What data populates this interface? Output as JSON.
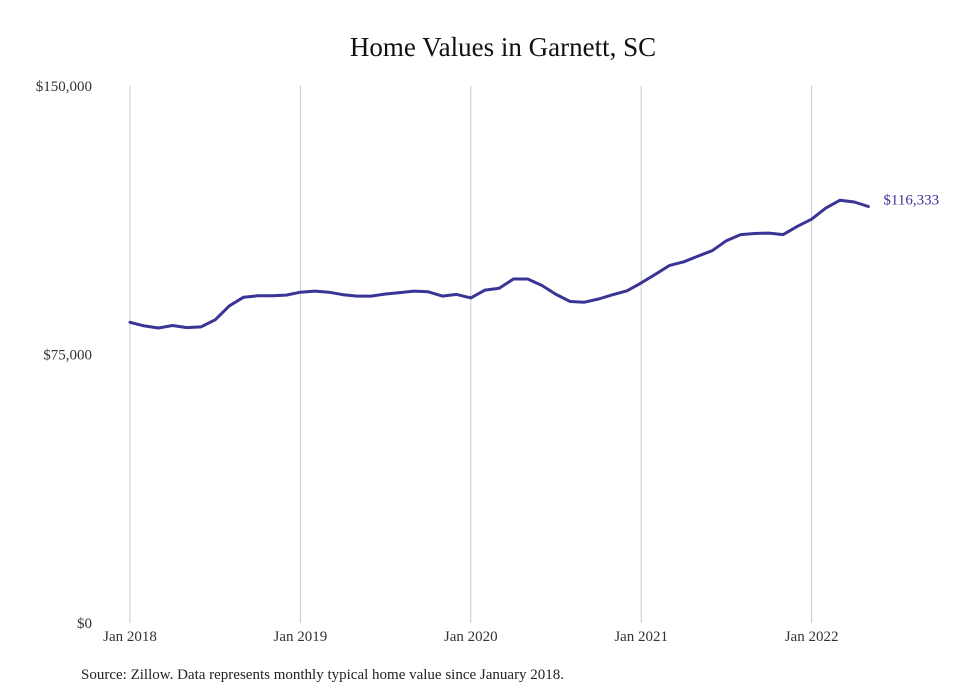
{
  "chart_data": {
    "type": "line",
    "title": "Home Values in Garnett, SC",
    "xlabel": "",
    "ylabel": "",
    "ylim": [
      0,
      150000
    ],
    "y_ticks": [
      {
        "value": 0,
        "label": "$0"
      },
      {
        "value": 75000,
        "label": "$75,000"
      },
      {
        "value": 150000,
        "label": "$150,000"
      }
    ],
    "x_ticks": [
      {
        "value": "2018-01",
        "label": "Jan 2018"
      },
      {
        "value": "2019-01",
        "label": "Jan 2019"
      },
      {
        "value": "2020-01",
        "label": "Jan 2020"
      },
      {
        "value": "2021-01",
        "label": "Jan 2021"
      },
      {
        "value": "2022-01",
        "label": "Jan 2022"
      }
    ],
    "grid": "vertical",
    "line_color": "#3a3496",
    "x": [
      "2018-01",
      "2018-02",
      "2018-03",
      "2018-04",
      "2018-05",
      "2018-06",
      "2018-07",
      "2018-08",
      "2018-09",
      "2018-10",
      "2018-11",
      "2018-12",
      "2019-01",
      "2019-02",
      "2019-03",
      "2019-04",
      "2019-05",
      "2019-06",
      "2019-07",
      "2019-08",
      "2019-09",
      "2019-10",
      "2019-11",
      "2019-12",
      "2020-01",
      "2020-02",
      "2020-03",
      "2020-04",
      "2020-05",
      "2020-06",
      "2020-07",
      "2020-08",
      "2020-09",
      "2020-10",
      "2020-11",
      "2020-12",
      "2021-01",
      "2021-02",
      "2021-03",
      "2021-04",
      "2021-05",
      "2021-06",
      "2021-07",
      "2021-08",
      "2021-09",
      "2021-10",
      "2021-11",
      "2021-12",
      "2022-01",
      "2022-02",
      "2022-03",
      "2022-04",
      "2022-05"
    ],
    "values": [
      84000,
      83000,
      82400,
      83100,
      82500,
      82700,
      84700,
      88600,
      91000,
      91400,
      91400,
      91600,
      92400,
      92700,
      92400,
      91700,
      91300,
      91300,
      91900,
      92300,
      92700,
      92500,
      91300,
      91800,
      90800,
      93000,
      93500,
      96100,
      96100,
      94300,
      91800,
      89800,
      89600,
      90500,
      91700,
      92800,
      95000,
      97400,
      99900,
      100900,
      102500,
      104000,
      106800,
      108500,
      108800,
      108900,
      108500,
      110800,
      112800,
      115900,
      118100,
      117600,
      116333
    ],
    "end_label": "$116,333"
  },
  "footer": {
    "source": "Source: Zillow. Data represents monthly typical home value since January 2018."
  }
}
